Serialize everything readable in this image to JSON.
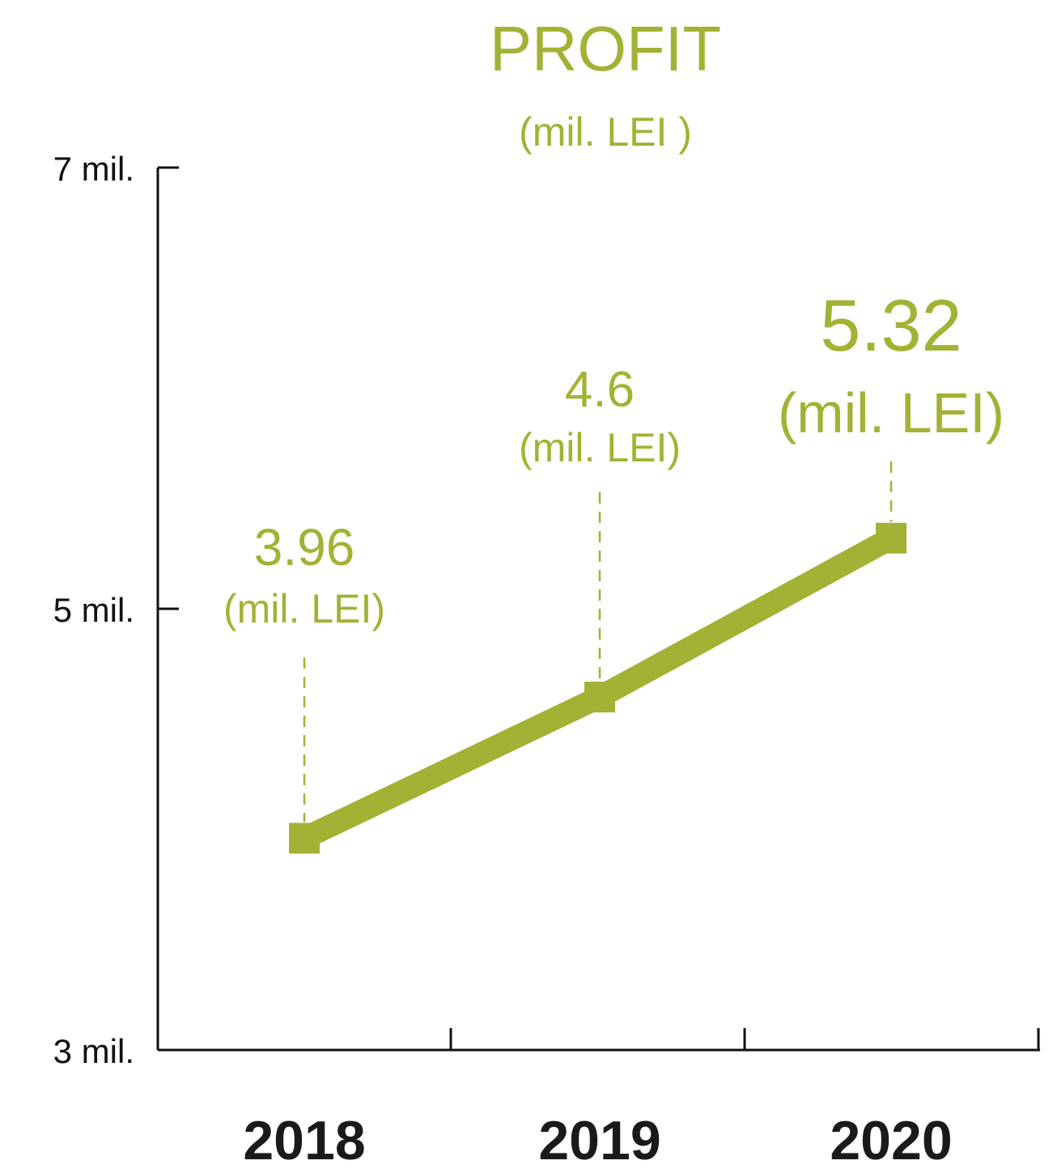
{
  "chart_data": {
    "type": "line",
    "title": "PROFIT",
    "subtitle": "(mil. LEI )",
    "categories": [
      "2018",
      "2019",
      "2020"
    ],
    "series": [
      {
        "values": [
          3.96,
          4.6,
          5.32
        ]
      }
    ],
    "data_labels": [
      {
        "value": "3.96",
        "unit": "(mil. LEI)"
      },
      {
        "value": "4.6",
        "unit": "(mil. LEI)"
      },
      {
        "value": "5.32",
        "unit": "(mil. LEI)"
      }
    ],
    "y_ticks": [
      {
        "value": 3,
        "label": "3 mil."
      },
      {
        "value": 5,
        "label": "5 mil."
      },
      {
        "value": 7,
        "label": "7 mil."
      }
    ],
    "ylim": [
      3,
      7
    ],
    "grid": false,
    "legend": "none",
    "colors": {
      "accent": "#a3b234",
      "axis": "#111111",
      "category_text": "#1a1a1a"
    }
  }
}
